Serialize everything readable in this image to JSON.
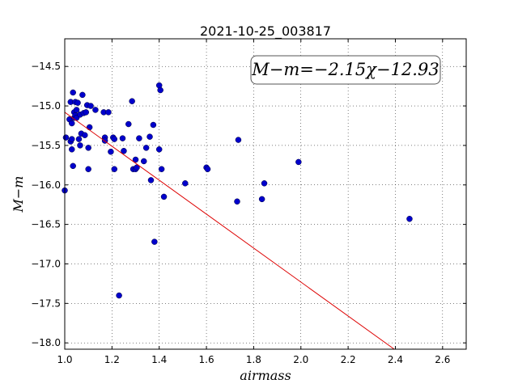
{
  "chart_data": {
    "type": "scatter",
    "title": "2021-10-25_003817",
    "xlabel": "airmass",
    "ylabel": "M−m",
    "annotation": "M−m=−2.15χ−12.93",
    "xlim": [
      1.0,
      2.7
    ],
    "ylim": [
      -18.08,
      -14.15
    ],
    "x_ticks": [
      1.0,
      1.2,
      1.4,
      1.6,
      1.8,
      2.0,
      2.2,
      2.4,
      2.6
    ],
    "x_tick_labels": [
      "1.0",
      "1.2",
      "1.4",
      "1.6",
      "1.8",
      "2.0",
      "2.2",
      "2.4",
      "2.6"
    ],
    "y_ticks": [
      -14.5,
      -15.0,
      -15.5,
      -16.0,
      -16.5,
      -17.0,
      -17.5,
      -18.0
    ],
    "y_tick_labels": [
      "−14.5",
      "−15.0",
      "−15.5",
      "−16.0",
      "−16.5",
      "−17.0",
      "−17.5",
      "−18.0"
    ],
    "grid": true,
    "marker_color": "#0000cc",
    "fit_color": "#dd0000",
    "fit": {
      "slope": -2.15,
      "intercept": -12.93
    },
    "x": [
      1.0,
      1.005,
      1.02,
      1.025,
      1.025,
      1.03,
      1.03,
      1.03,
      1.035,
      1.035,
      1.04,
      1.04,
      1.045,
      1.045,
      1.05,
      1.05,
      1.055,
      1.06,
      1.065,
      1.065,
      1.07,
      1.075,
      1.08,
      1.085,
      1.09,
      1.095,
      1.1,
      1.1,
      1.105,
      1.11,
      1.13,
      1.165,
      1.17,
      1.17,
      1.185,
      1.195,
      1.205,
      1.21,
      1.21,
      1.23,
      1.245,
      1.25,
      1.27,
      1.285,
      1.29,
      1.3,
      1.3,
      1.305,
      1.315,
      1.335,
      1.345,
      1.36,
      1.365,
      1.375,
      1.38,
      1.4,
      1.4,
      1.405,
      1.41,
      1.42,
      1.51,
      1.6,
      1.605,
      1.73,
      1.735,
      1.835,
      1.845,
      1.99,
      2.46
    ],
    "y": [
      -16.07,
      -15.4,
      -15.17,
      -15.45,
      -14.95,
      -15.42,
      -15.22,
      -15.55,
      -15.76,
      -14.83,
      -15.15,
      -15.08,
      -14.95,
      -15.12,
      -15.05,
      -15.15,
      -14.96,
      -15.42,
      -15.11,
      -15.5,
      -15.35,
      -14.86,
      -15.09,
      -15.37,
      -15.08,
      -14.99,
      -15.8,
      -15.53,
      -15.27,
      -15.0,
      -15.05,
      -15.08,
      -15.4,
      -15.44,
      -15.08,
      -15.58,
      -15.4,
      -15.42,
      -15.8,
      -17.4,
      -15.41,
      -15.57,
      -15.23,
      -14.94,
      -15.8,
      -15.68,
      -15.8,
      -15.78,
      -15.41,
      -15.7,
      -15.53,
      -15.39,
      -15.94,
      -15.24,
      -16.72,
      -14.74,
      -15.55,
      -14.8,
      -15.8,
      -16.15,
      -15.98,
      -15.78,
      -15.8,
      -16.21,
      -15.43,
      -16.18,
      -15.98,
      -15.71,
      -16.43
    ]
  }
}
